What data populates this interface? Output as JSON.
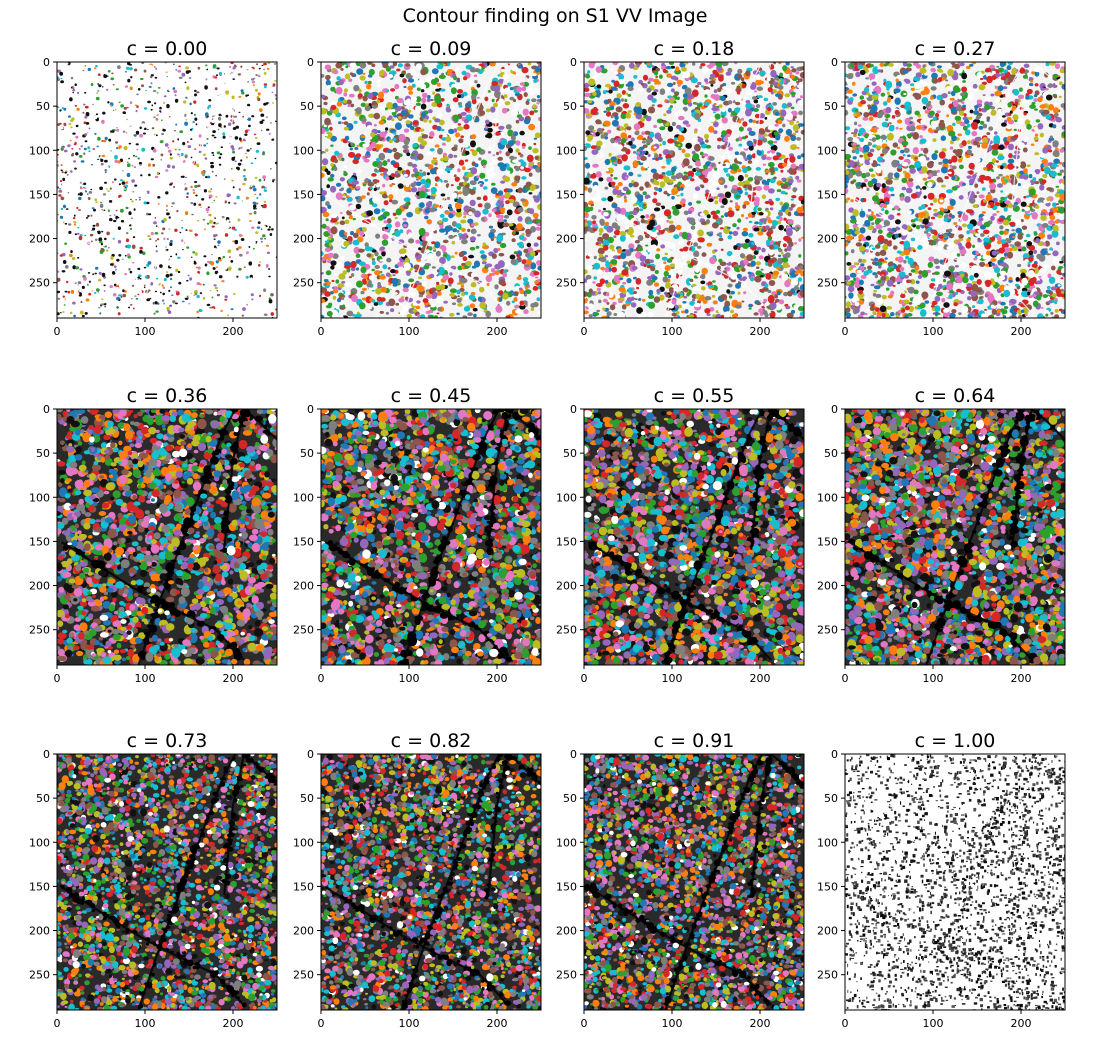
{
  "figure": {
    "suptitle": "Contour finding on S1 VV Image"
  },
  "chart_data": {
    "type": "heatmap",
    "title": "Contour finding on S1 VV Image",
    "rows": 3,
    "cols": 4,
    "xlim": [
      0,
      250
    ],
    "ylim": [
      290,
      0
    ],
    "xticks": [
      0,
      100,
      200
    ],
    "yticks": [
      0,
      50,
      100,
      150,
      200,
      250
    ],
    "panels": [
      {
        "title": "c = 0.00",
        "c": 0.0,
        "render": "contours"
      },
      {
        "title": "c = 0.09",
        "c": 0.09,
        "render": "contours"
      },
      {
        "title": "c = 0.18",
        "c": 0.18,
        "render": "contours"
      },
      {
        "title": "c = 0.27",
        "c": 0.27,
        "render": "contours"
      },
      {
        "title": "c = 0.36",
        "c": 0.36,
        "render": "contours"
      },
      {
        "title": "c = 0.45",
        "c": 0.45,
        "render": "contours"
      },
      {
        "title": "c = 0.55",
        "c": 0.55,
        "render": "contours"
      },
      {
        "title": "c = 0.64",
        "c": 0.64,
        "render": "contours"
      },
      {
        "title": "c = 0.73",
        "c": 0.73,
        "render": "contours"
      },
      {
        "title": "c = 0.82",
        "c": 0.82,
        "render": "contours"
      },
      {
        "title": "c = 0.91",
        "c": 0.91,
        "render": "contours"
      },
      {
        "title": "c = 1.00",
        "c": 1.0,
        "render": "grayscale"
      }
    ],
    "contour_palette": [
      "#1f77b4",
      "#ff7f0e",
      "#2ca02c",
      "#d62728",
      "#9467bd",
      "#8c564b",
      "#e377c2",
      "#7f7f7f",
      "#bcbd22",
      "#17becf"
    ]
  }
}
